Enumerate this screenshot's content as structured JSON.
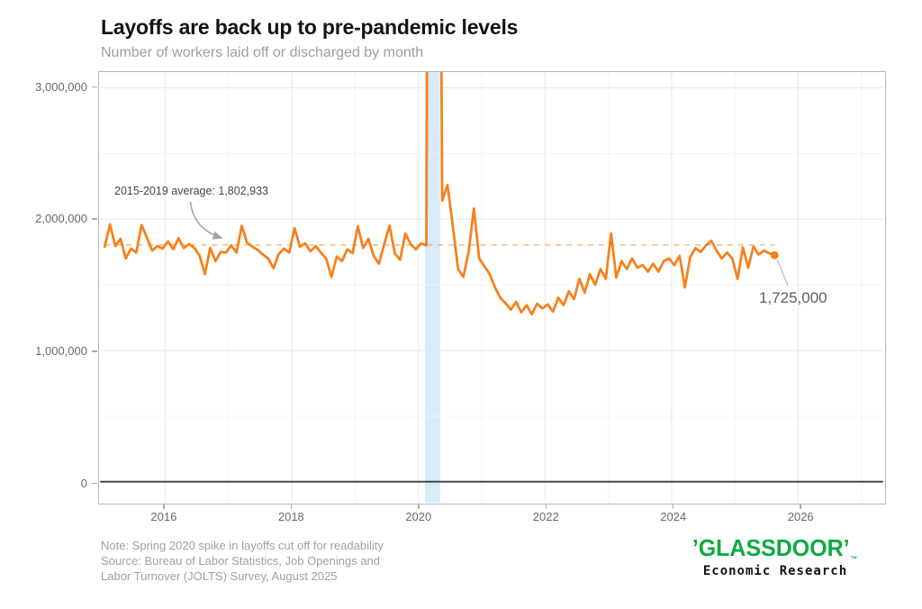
{
  "header": {
    "title": "Layoffs are back up to pre-pandemic levels",
    "subtitle": "Number of workers laid off or discharged by month"
  },
  "annotation": {
    "label": "2015-2019 average: 1,802,933",
    "value": 1802933
  },
  "end_point": {
    "label": "1,725,000",
    "value": 1725000,
    "period": "August 2025"
  },
  "notes": [
    "Note: Spring 2020 spike in layoffs cut off for readability",
    "Source: Bureau of Labor Statistics, Job Openings and",
    "Labor Turnover (JOLTS) Survey, August 2025"
  ],
  "branding": {
    "logo_open_mark": "’",
    "logo_text": "GLASSDOOR",
    "logo_close_mark": "’",
    "trademark": "™",
    "tagline": "Economic Research",
    "green": "#0caa41"
  },
  "chart_data": {
    "type": "line",
    "title": "Layoffs are back up to pre-pandemic levels",
    "subtitle": "Number of workers laid off or discharged by month",
    "xlabel": "",
    "ylabel": "",
    "frequency": "monthly",
    "x_start": "2015-01",
    "x_end": "2025-08",
    "grid": true,
    "legend": false,
    "xlim_years": [
      2014.97,
      2027.34
    ],
    "ylim": [
      -160000,
      3120000
    ],
    "x_tick_years": [
      2016,
      2018,
      2020,
      2022,
      2024,
      2026
    ],
    "x_tick_labels": [
      "2016",
      "2018",
      "2020",
      "2022",
      "2024",
      "2026"
    ],
    "x_minor_gridline_years": [
      2017,
      2019,
      2021,
      2023,
      2025,
      2027
    ],
    "y_ticks": [
      0,
      1000000,
      2000000,
      3000000
    ],
    "y_tick_labels": [
      "0",
      "1,000,000",
      "2,000,000",
      "3,000,000"
    ],
    "y_minor_gridlines": [
      500000,
      1500000,
      2500000
    ],
    "average_line_value": 1802933,
    "pandemic_band_years": [
      2020.1,
      2020.34
    ],
    "spike_clipped": true,
    "series": [
      {
        "name": "Workers laid off or discharged per month",
        "start_year": 2015,
        "values": [
          1790000,
          1960000,
          1795000,
          1850000,
          1700000,
          1775000,
          1745000,
          1955000,
          1860000,
          1760000,
          1795000,
          1775000,
          1830000,
          1770000,
          1855000,
          1780000,
          1810000,
          1780000,
          1720000,
          1580000,
          1780000,
          1680000,
          1750000,
          1745000,
          1800000,
          1745000,
          1950000,
          1820000,
          1790000,
          1765000,
          1730000,
          1700000,
          1625000,
          1735000,
          1775000,
          1745000,
          1930000,
          1790000,
          1815000,
          1755000,
          1795000,
          1745000,
          1700000,
          1560000,
          1715000,
          1680000,
          1770000,
          1740000,
          1945000,
          1780000,
          1850000,
          1720000,
          1660000,
          1810000,
          1950000,
          1740000,
          1690000,
          1890000,
          1810000,
          1770000,
          1815000,
          1800000,
          12500000,
          9000000,
          2140000,
          2260000,
          1950000,
          1620000,
          1560000,
          1750000,
          2080000,
          1700000,
          1640000,
          1580000,
          1480000,
          1400000,
          1360000,
          1310000,
          1370000,
          1290000,
          1345000,
          1275000,
          1355000,
          1320000,
          1350000,
          1295000,
          1400000,
          1345000,
          1450000,
          1390000,
          1545000,
          1440000,
          1580000,
          1500000,
          1620000,
          1545000,
          1890000,
          1555000,
          1680000,
          1620000,
          1700000,
          1630000,
          1650000,
          1600000,
          1660000,
          1600000,
          1680000,
          1700000,
          1650000,
          1720000,
          1480000,
          1710000,
          1780000,
          1750000,
          1800000,
          1835000,
          1760000,
          1700000,
          1745000,
          1700000,
          1545000,
          1785000,
          1630000,
          1790000,
          1730000,
          1760000,
          1740000,
          1725000
        ]
      }
    ],
    "colors": {
      "line": "#f5811e",
      "average_dash": "#f5811e",
      "band": "#d7eaf7",
      "grid_major": "#e7e7e7",
      "grid_minor": "#f3f3f3",
      "zero_line": "#3c3c3c",
      "panel_border": "#b4b7ba"
    }
  }
}
